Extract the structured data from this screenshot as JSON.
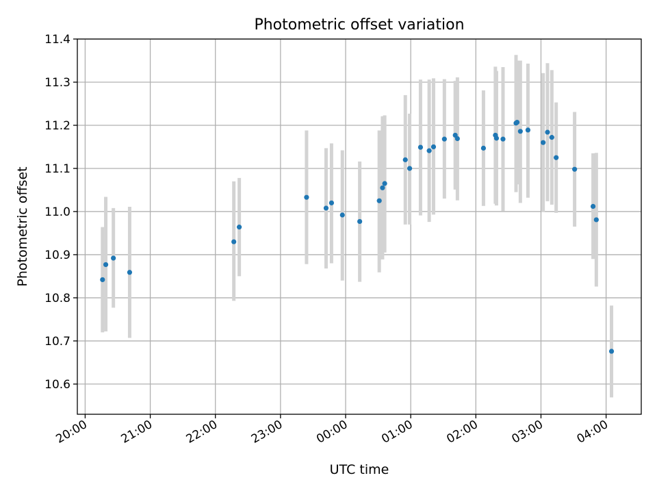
{
  "chart_data": {
    "type": "scatter",
    "title": "Photometric offset variation",
    "xlabel": "UTC time",
    "ylabel": "Photometric offset",
    "x_tick_labels": [
      "20:00",
      "21:00",
      "22:00",
      "23:00",
      "00:00",
      "01:00",
      "02:00",
      "03:00",
      "04:00"
    ],
    "x_tick_hours": [
      0,
      1,
      2,
      3,
      4,
      5,
      6,
      7,
      8
    ],
    "x_range_hours": [
      -0.12,
      8.54
    ],
    "y_ticks": [
      "10.6",
      "10.7",
      "10.8",
      "10.9",
      "11.0",
      "11.1",
      "11.2",
      "11.3",
      "11.4"
    ],
    "ylim": [
      10.53,
      11.4
    ],
    "grid": true,
    "colors": {
      "point": "#1f77b4",
      "errorbar": "#d3d3d3",
      "grid": "#b0b0b0"
    },
    "series": [
      {
        "points": [
          {
            "t": "20:16",
            "y": 10.842,
            "lo": 10.72,
            "hi": 10.964
          },
          {
            "t": "20:19",
            "y": 10.877,
            "lo": 10.722,
            "hi": 11.034
          },
          {
            "t": "20:26",
            "y": 10.892,
            "lo": 10.777,
            "hi": 11.008
          },
          {
            "t": "20:41",
            "y": 10.859,
            "lo": 10.707,
            "hi": 11.011
          },
          {
            "t": "22:17",
            "y": 10.93,
            "lo": 10.793,
            "hi": 11.07
          },
          {
            "t": "22:22",
            "y": 10.964,
            "lo": 10.85,
            "hi": 11.078
          },
          {
            "t": "23:24",
            "y": 11.033,
            "lo": 10.878,
            "hi": 11.188
          },
          {
            "t": "23:42",
            "y": 11.008,
            "lo": 10.868,
            "hi": 11.147
          },
          {
            "t": "23:47",
            "y": 11.02,
            "lo": 10.88,
            "hi": 11.158
          },
          {
            "t": "23:57",
            "y": 10.992,
            "lo": 10.84,
            "hi": 11.142
          },
          {
            "t": "00:13",
            "y": 10.977,
            "lo": 10.837,
            "hi": 11.116
          },
          {
            "t": "00:31",
            "y": 11.025,
            "lo": 10.859,
            "hi": 11.188
          },
          {
            "t": "00:34",
            "y": 11.055,
            "lo": 10.889,
            "hi": 11.221
          },
          {
            "t": "00:36",
            "y": 11.065,
            "lo": 10.905,
            "hi": 11.223
          },
          {
            "t": "00:55",
            "y": 11.12,
            "lo": 10.97,
            "hi": 11.27
          },
          {
            "t": "00:59",
            "y": 11.1,
            "lo": 10.97,
            "hi": 11.227
          },
          {
            "t": "01:09",
            "y": 11.149,
            "lo": 10.991,
            "hi": 11.306
          },
          {
            "t": "01:17",
            "y": 11.141,
            "lo": 10.976,
            "hi": 11.306
          },
          {
            "t": "01:21",
            "y": 11.15,
            "lo": 10.993,
            "hi": 11.309
          },
          {
            "t": "01:31",
            "y": 11.168,
            "lo": 11.03,
            "hi": 11.307
          },
          {
            "t": "01:41",
            "y": 11.177,
            "lo": 11.051,
            "hi": 11.303
          },
          {
            "t": "01:43",
            "y": 11.169,
            "lo": 11.026,
            "hi": 11.311
          },
          {
            "t": "02:07",
            "y": 11.147,
            "lo": 11.013,
            "hi": 11.281
          },
          {
            "t": "02:18",
            "y": 11.177,
            "lo": 11.018,
            "hi": 11.336
          },
          {
            "t": "02:19",
            "y": 11.17,
            "lo": 11.014,
            "hi": 11.326
          },
          {
            "t": "02:25",
            "y": 11.168,
            "lo": 11.001,
            "hi": 11.335
          },
          {
            "t": "02:37",
            "y": 11.205,
            "lo": 11.045,
            "hi": 11.363
          },
          {
            "t": "02:38",
            "y": 11.207,
            "lo": 11.063,
            "hi": 11.35
          },
          {
            "t": "02:41",
            "y": 11.186,
            "lo": 11.02,
            "hi": 11.35
          },
          {
            "t": "02:48",
            "y": 11.189,
            "lo": 11.032,
            "hi": 11.343
          },
          {
            "t": "03:02",
            "y": 11.16,
            "lo": 10.999,
            "hi": 11.321
          },
          {
            "t": "03:06",
            "y": 11.184,
            "lo": 11.024,
            "hi": 11.344
          },
          {
            "t": "03:10",
            "y": 11.172,
            "lo": 11.016,
            "hi": 11.328
          },
          {
            "t": "03:14",
            "y": 11.125,
            "lo": 10.997,
            "hi": 11.253
          },
          {
            "t": "03:31",
            "y": 11.098,
            "lo": 10.965,
            "hi": 11.231
          },
          {
            "t": "03:48",
            "y": 11.012,
            "lo": 10.89,
            "hi": 11.135
          },
          {
            "t": "03:51",
            "y": 10.981,
            "lo": 10.826,
            "hi": 11.136
          },
          {
            "t": "04:05",
            "y": 10.676,
            "lo": 10.569,
            "hi": 10.782
          }
        ]
      }
    ]
  }
}
